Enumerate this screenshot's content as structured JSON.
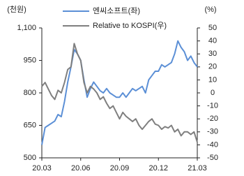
{
  "chart_data": {
    "type": "line",
    "y_label": "(천원)",
    "y2_label": "(%)",
    "x": [
      0,
      0.25,
      0.5,
      0.75,
      1,
      1.25,
      1.5,
      1.75,
      2,
      2.25,
      2.5,
      2.75,
      3,
      3.25,
      3.5,
      3.75,
      4,
      4.25,
      4.5,
      4.75,
      5,
      5.25,
      5.5,
      5.75,
      6,
      6.25,
      6.5,
      6.75,
      7,
      7.25,
      7.5,
      7.75,
      8,
      8.25,
      8.5,
      8.75,
      9,
      9.25,
      9.5,
      9.75,
      10,
      10.25,
      10.5,
      10.75,
      11,
      11.25,
      11.5,
      11.75,
      12
    ],
    "xlim": [
      0,
      12
    ],
    "xticks": [
      {
        "value": 0,
        "label": "20.03"
      },
      {
        "value": 3,
        "label": "20.06"
      },
      {
        "value": 6,
        "label": "20.09"
      },
      {
        "value": 9,
        "label": "20.12"
      },
      {
        "value": 12,
        "label": "21.03"
      }
    ],
    "ylim": [
      500,
      1100
    ],
    "yticks": [
      500,
      650,
      800,
      950,
      {
        "value": 1100,
        "label": "1,100"
      }
    ],
    "y2lim": [
      -50,
      50
    ],
    "y2ticks": [
      -50,
      -40,
      -30,
      -20,
      -10,
      0,
      10,
      20,
      30,
      40,
      50
    ],
    "series": [
      {
        "name": "엔씨소프트(좌)",
        "color": "#5b8fd6",
        "values": [
          560,
          640,
          650,
          660,
          670,
          700,
          690,
          760,
          850,
          920,
          1000,
          980,
          950,
          860,
          780,
          820,
          850,
          830,
          810,
          800,
          820,
          800,
          790,
          780,
          780,
          800,
          780,
          800,
          820,
          810,
          820,
          830,
          800,
          860,
          880,
          900,
          900,
          930,
          920,
          930,
          940,
          980,
          1040,
          1010,
          990,
          950,
          970,
          940,
          920
        ]
      },
      {
        "name": "Relative to KOSPI(우)",
        "color": "#7f7f7f",
        "axis": "y2",
        "values": [
          5,
          8,
          3,
          -2,
          -5,
          2,
          0,
          8,
          18,
          20,
          38,
          30,
          25,
          8,
          0,
          5,
          3,
          0,
          -5,
          -3,
          -8,
          -12,
          -10,
          -15,
          -20,
          -15,
          -18,
          -20,
          -22,
          -20,
          -25,
          -28,
          -25,
          -22,
          -20,
          -24,
          -25,
          -28,
          -26,
          -27,
          -25,
          -30,
          -28,
          -33,
          -30,
          -30,
          -32,
          -30,
          -38
        ]
      }
    ]
  }
}
